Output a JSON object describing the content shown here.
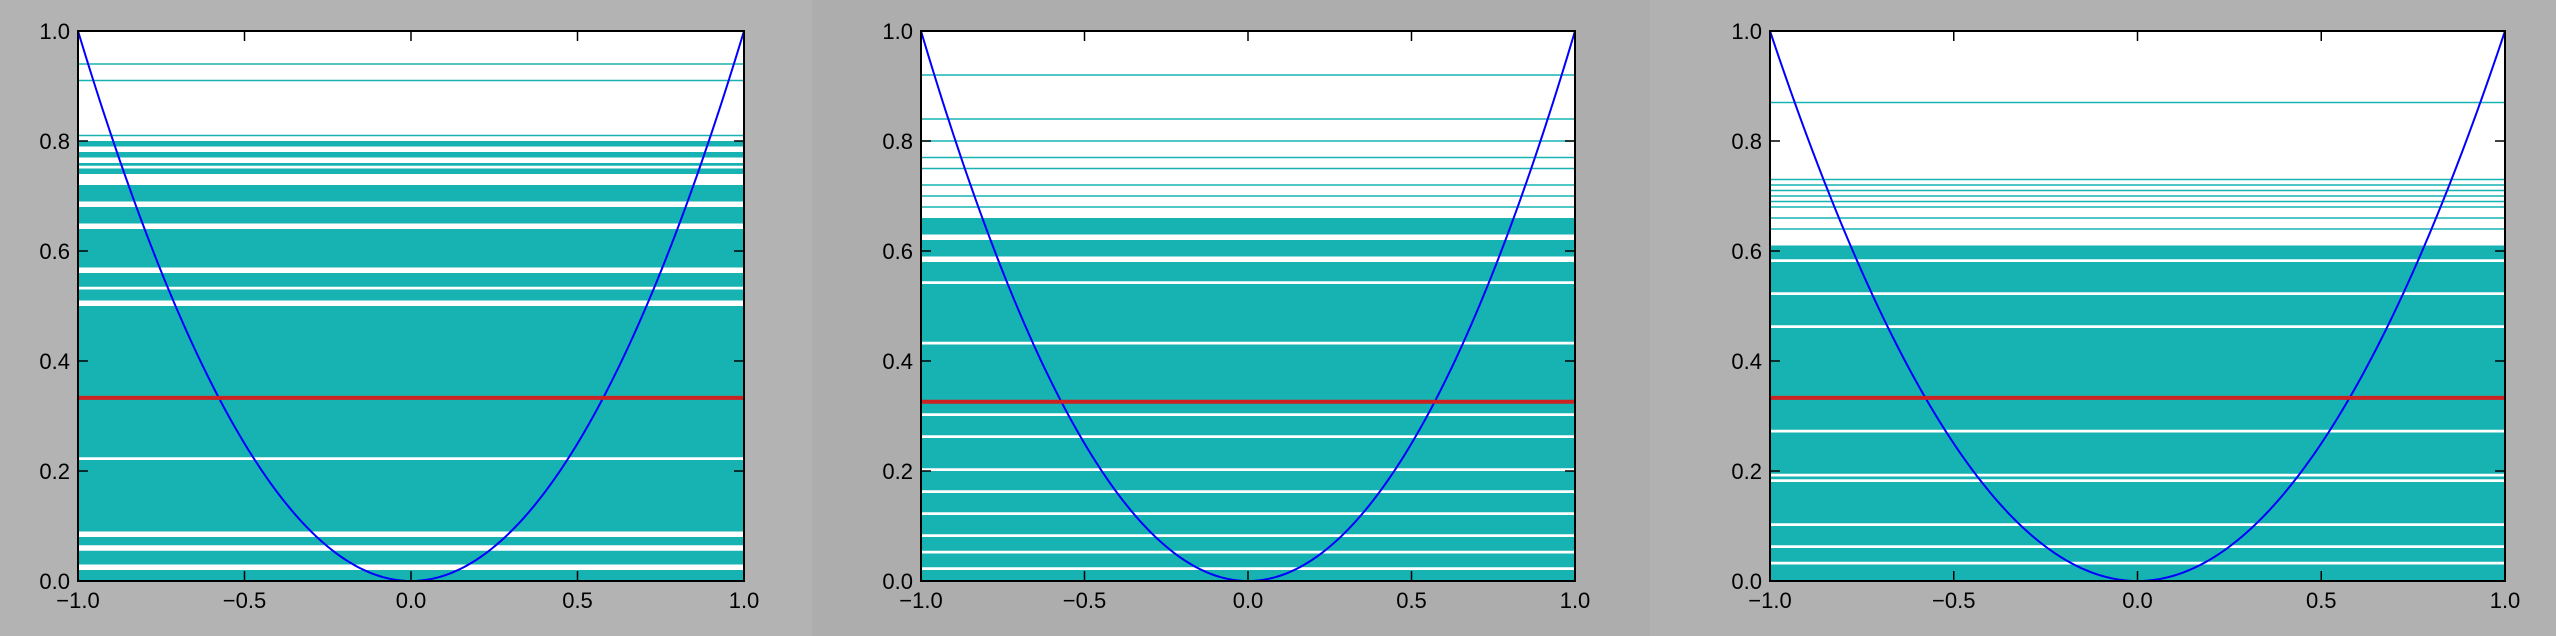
{
  "colors": {
    "background": "#b3b3b3",
    "plot_bg": "#ffffff",
    "fill": "#17b3b3",
    "gap": "#ffffff",
    "parabola": "#0000ff",
    "mean_line": "#cc2222"
  },
  "chart_data": [
    {
      "type": "line",
      "title": "",
      "xlabel": "",
      "ylabel": "",
      "xlim": [
        -1.0,
        1.0
      ],
      "ylim": [
        0.0,
        1.0
      ],
      "grid": false,
      "legend": "none",
      "x_ticks": [
        "−1.0",
        "−0.5",
        "0.0",
        "0.5",
        "1.0"
      ],
      "y_ticks": [
        "0.0",
        "0.2",
        "0.4",
        "0.6",
        "0.8",
        "1.0"
      ],
      "series": [
        {
          "kind": "curve",
          "function": "y = x^2",
          "x_range": [
            -1.0,
            1.0
          ]
        },
        {
          "kind": "hline",
          "y": 0.333
        }
      ],
      "sampled_levels": {
        "bands": [
          [
            0.0,
            0.02
          ],
          [
            0.03,
            0.055
          ],
          [
            0.065,
            0.08
          ],
          [
            0.09,
            0.22
          ],
          [
            0.225,
            0.5
          ],
          [
            0.51,
            0.53
          ],
          [
            0.535,
            0.56
          ],
          [
            0.57,
            0.64
          ],
          [
            0.65,
            0.68
          ],
          [
            0.69,
            0.72
          ],
          [
            0.74,
            0.75
          ],
          [
            0.755,
            0.76
          ],
          [
            0.77,
            0.78
          ],
          [
            0.79,
            0.8
          ]
        ],
        "lines": [
          0.81,
          0.91,
          0.94
        ]
      }
    },
    {
      "type": "line",
      "title": "",
      "xlabel": "",
      "ylabel": "",
      "xlim": [
        -1.0,
        1.0
      ],
      "ylim": [
        0.0,
        1.0
      ],
      "grid": false,
      "legend": "none",
      "x_ticks": [
        "−1.0",
        "−0.5",
        "0.0",
        "0.5",
        "1.0"
      ],
      "y_ticks": [
        "0.0",
        "0.2",
        "0.4",
        "0.6",
        "0.8",
        "1.0"
      ],
      "series": [
        {
          "kind": "curve",
          "function": "y = x^2",
          "x_range": [
            -1.0,
            1.0
          ]
        },
        {
          "kind": "hline",
          "y": 0.326
        }
      ],
      "sampled_levels": {
        "bands": [
          [
            0.0,
            0.02
          ],
          [
            0.025,
            0.05
          ],
          [
            0.055,
            0.08
          ],
          [
            0.085,
            0.12
          ],
          [
            0.125,
            0.16
          ],
          [
            0.165,
            0.2
          ],
          [
            0.205,
            0.26
          ],
          [
            0.265,
            0.3
          ],
          [
            0.305,
            0.43
          ],
          [
            0.435,
            0.54
          ],
          [
            0.545,
            0.58
          ],
          [
            0.59,
            0.62
          ],
          [
            0.63,
            0.66
          ]
        ],
        "lines": [
          0.68,
          0.7,
          0.72,
          0.75,
          0.77,
          0.8,
          0.84,
          0.92
        ]
      }
    },
    {
      "type": "line",
      "title": "",
      "xlabel": "",
      "ylabel": "",
      "xlim": [
        -1.0,
        1.0
      ],
      "ylim": [
        0.0,
        1.0
      ],
      "grid": false,
      "legend": "none",
      "x_ticks": [
        "−1.0",
        "−0.5",
        "0.0",
        "0.5",
        "1.0"
      ],
      "y_ticks": [
        "0.0",
        "0.2",
        "0.4",
        "0.6",
        "0.8",
        "1.0"
      ],
      "series": [
        {
          "kind": "curve",
          "function": "y = x^2",
          "x_range": [
            -1.0,
            1.0
          ]
        },
        {
          "kind": "hline",
          "y": 0.333
        }
      ],
      "sampled_levels": {
        "bands": [
          [
            0.0,
            0.03
          ],
          [
            0.035,
            0.06
          ],
          [
            0.065,
            0.1
          ],
          [
            0.105,
            0.18
          ],
          [
            0.185,
            0.19
          ],
          [
            0.195,
            0.27
          ],
          [
            0.275,
            0.46
          ],
          [
            0.465,
            0.52
          ],
          [
            0.525,
            0.58
          ],
          [
            0.585,
            0.61
          ]
        ],
        "lines": [
          0.64,
          0.66,
          0.68,
          0.69,
          0.7,
          0.71,
          0.72,
          0.73,
          0.87
        ]
      }
    }
  ]
}
